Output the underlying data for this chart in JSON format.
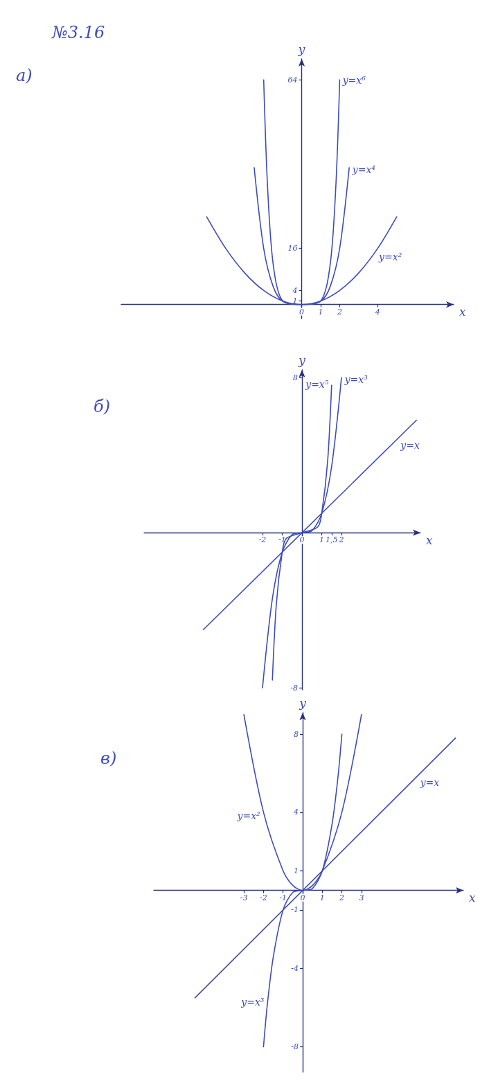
{
  "chart_data": [
    {
      "type": "line",
      "title": "№3.16",
      "subtitle": "а)",
      "xlabel": "x",
      "ylabel": "y",
      "xlim": [
        -9.5,
        8
      ],
      "ylim": [
        -4,
        70
      ],
      "xticks": [
        0,
        1,
        2,
        4
      ],
      "yticks": [
        1,
        4,
        16,
        64
      ],
      "marker": "none",
      "series": [
        {
          "color": "#3d4bbf",
          "x": [
            -5,
            -4,
            -3,
            -2,
            -1,
            0,
            1,
            2,
            3,
            4,
            5
          ],
          "values": [
            25,
            16,
            9,
            4,
            1,
            0,
            1,
            4,
            9,
            16,
            25
          ]
        },
        {
          "color": "#3d4bbf",
          "x": [
            -2.5,
            -2,
            -1.5,
            -1,
            0,
            1,
            1.5,
            2,
            2.5
          ],
          "values": [
            39,
            16,
            5.1,
            1,
            0,
            1,
            5.1,
            16,
            39
          ]
        },
        {
          "color": "#3d4bbf",
          "x": [
            -2,
            -1.8,
            -1.5,
            -1,
            0,
            1,
            1.5,
            1.8,
            2
          ],
          "values": [
            64,
            34,
            11.4,
            1,
            0,
            1,
            11.4,
            34,
            64
          ]
        }
      ],
      "annotations": [
        {
          "text": "y=x⁶",
          "x": 2,
          "y": 64
        },
        {
          "text": "y=x⁴",
          "x": 2.5,
          "y": 39
        },
        {
          "text": "y=x²",
          "x": 4,
          "y": 16
        }
      ]
    },
    {
      "type": "line",
      "title": "б)",
      "xlabel": "x",
      "ylabel": "y",
      "xlim": [
        -8,
        6
      ],
      "ylim": [
        -8.1,
        8.4
      ],
      "xticks": [
        -2,
        -1,
        0,
        1,
        {
          "value": 1.5,
          "label": "1,5"
        },
        2
      ],
      "yticks": [
        -8,
        8
      ],
      "marker": "none",
      "series": [
        {
          "color": "#3d4bbf",
          "x": [
            -5,
            5.8
          ],
          "values": [
            -5,
            5.8
          ]
        },
        {
          "color": "#3d4bbf",
          "x": [
            -1.5,
            -1.3,
            -1,
            -0.8,
            0,
            0.8,
            1,
            1.3,
            1.5
          ],
          "values": [
            -7.6,
            -3.7,
            -1,
            -0.3,
            0,
            0.3,
            1,
            3.7,
            7.6
          ]
        },
        {
          "color": "#3d4bbf",
          "x": [
            -2,
            -1.5,
            -1,
            -0.5,
            0,
            0.5,
            1,
            1.5,
            2
          ],
          "values": [
            -8,
            -3.4,
            -1,
            -0.1,
            0,
            0.1,
            1,
            3.4,
            8
          ]
        }
      ],
      "annotations": [
        {
          "text": "y=x⁵",
          "x": 1.5,
          "y": 7.6
        },
        {
          "text": "y=x³",
          "x": 2,
          "y": 8
        },
        {
          "text": "y=x",
          "x": 5,
          "y": 5
        }
      ]
    },
    {
      "type": "line",
      "title": "в)",
      "xlabel": "x",
      "ylabel": "y",
      "xlim": [
        -7.6,
        8.2
      ],
      "ylim": [
        -9.3,
        9.1
      ],
      "xticks": [
        -3,
        -2,
        -1,
        0,
        1,
        2,
        3
      ],
      "yticks": [
        -8,
        -4,
        -1,
        1,
        4,
        8
      ],
      "marker": "none",
      "series": [
        {
          "color": "#3d4bbf",
          "x": [
            -5.5,
            7.8
          ],
          "values": [
            -5.5,
            7.8
          ]
        },
        {
          "color": "#3d4bbf",
          "x": [
            -3,
            -2,
            -1,
            -0.5,
            0,
            0.5,
            1,
            2,
            3
          ],
          "values": [
            9,
            4,
            1,
            0.25,
            0,
            0.25,
            1,
            4,
            9
          ]
        },
        {
          "color": "#3d4bbf",
          "x": [
            -2,
            -1.8,
            -1.5,
            -1,
            -0.5,
            0,
            0.5,
            1,
            1.5,
            1.8,
            2
          ],
          "values": [
            -8,
            -5.8,
            -3.4,
            -1,
            -0.1,
            0,
            0.1,
            1,
            3.4,
            5.8,
            8
          ]
        }
      ],
      "annotations": [
        {
          "text": "y=x²",
          "x": -2,
          "y": 4
        },
        {
          "text": "y=x³",
          "x": -1.8,
          "y": -5.8
        },
        {
          "text": "y=x",
          "x": 6,
          "y": 6
        }
      ]
    }
  ]
}
